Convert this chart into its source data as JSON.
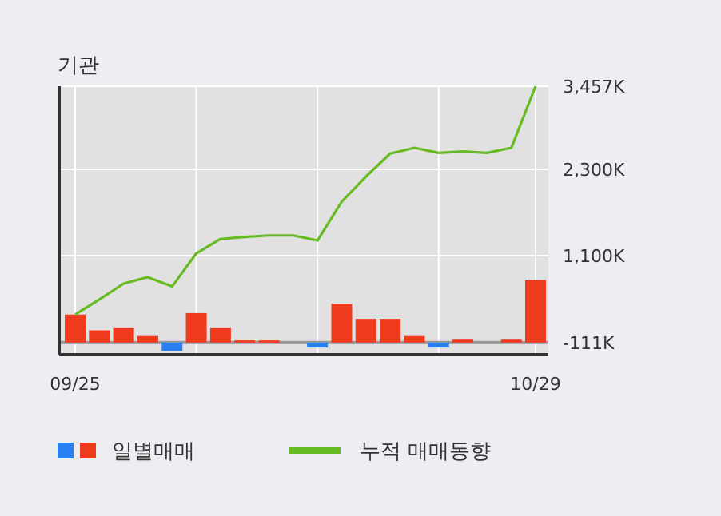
{
  "chart_data": {
    "type": "bar",
    "title": "기관",
    "categories": [
      "09/25",
      null,
      null,
      null,
      null,
      null,
      null,
      null,
      null,
      null,
      null,
      null,
      null,
      null,
      null,
      null,
      null,
      null,
      null,
      "10/29"
    ],
    "series": [
      {
        "name": "일별매매",
        "color": "#f03a1e",
        "colors": [
          "#f03a1e",
          "#f03a1e",
          "#f03a1e",
          "#f03a1e",
          "#2a7ff0",
          "#f03a1e",
          "#f03a1e",
          "#f03a1e",
          "#f03a1e",
          "#f03a1e",
          "#2a7ff0",
          "#f03a1e",
          "#f03a1e",
          "#f03a1e",
          "#f03a1e",
          "#2a7ff0",
          "#f03a1e",
          "#f03a1e",
          "#f03a1e",
          "#f03a1e"
        ],
        "base": [
          -111,
          -111,
          -111,
          -111,
          -111,
          -111,
          -111,
          -111,
          -111,
          null,
          -111,
          -111,
          -111,
          -111,
          -111,
          -111,
          -111,
          null,
          -111,
          -111
        ],
        "values": [
          390,
          170,
          200,
          90,
          -120,
          410,
          200,
          30,
          30,
          null,
          -70,
          540,
          330,
          330,
          90,
          -70,
          40,
          null,
          40,
          870
        ]
      },
      {
        "name": "누적 매매동향",
        "type": "line",
        "color": "#66bb22",
        "values": [
          280,
          490,
          710,
          800,
          670,
          1130,
          1330,
          1360,
          1380,
          1380,
          1310,
          1850,
          2200,
          2520,
          2600,
          2530,
          2550,
          2530,
          2600,
          3457
        ]
      }
    ],
    "ref_lines": [
      {
        "axis": "y",
        "value": -111,
        "color": "#999999"
      }
    ],
    "ylim": [
      -280,
      3457
    ],
    "yticks": [
      {
        "value": -111,
        "label": "-111K"
      },
      {
        "value": 1100,
        "label": "1,100K"
      },
      {
        "value": 2300,
        "label": "2,300K"
      },
      {
        "value": 3457,
        "label": "3,457K"
      }
    ],
    "grid": true,
    "legend": "bottom",
    "marker": "none",
    "line_style": "solid"
  }
}
